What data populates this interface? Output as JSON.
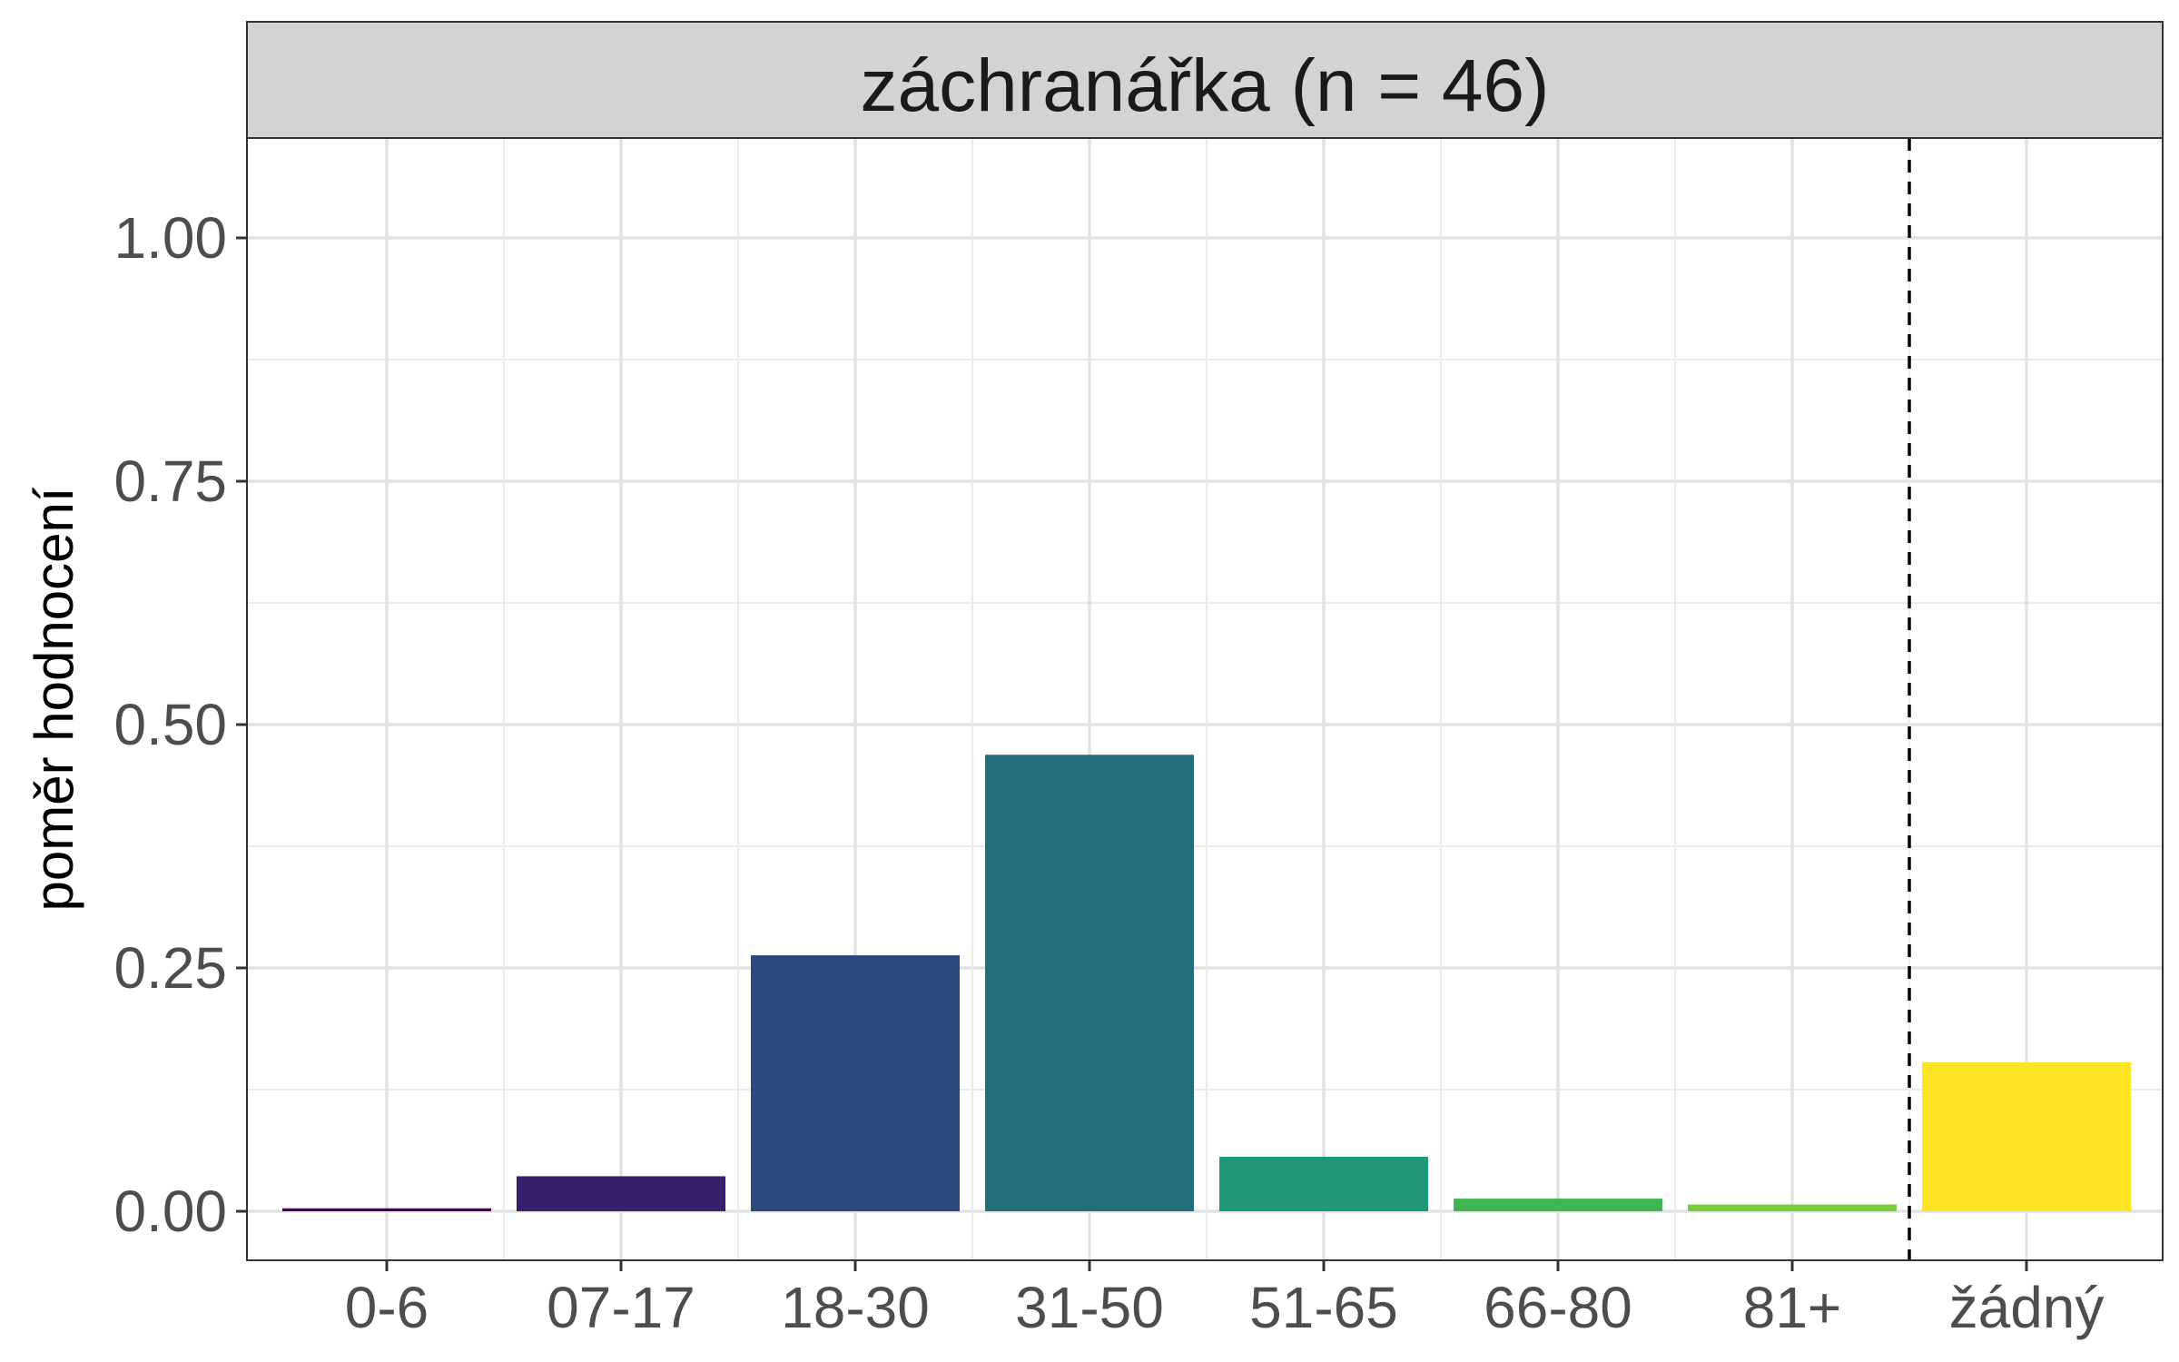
{
  "strip": {
    "title": "záchranářka (n = 46)"
  },
  "chart_data": {
    "type": "bar",
    "categories": [
      "0-6",
      "07-17",
      "18-30",
      "31-50",
      "51-65",
      "66-80",
      "81+",
      "žádný"
    ],
    "values": [
      0.003,
      0.036,
      0.263,
      0.469,
      0.056,
      0.013,
      0.007,
      0.153
    ],
    "colors": [
      "#440154",
      "#3b1f6b",
      "#2b4a7b",
      "#226e7c",
      "#21977a",
      "#3fb653",
      "#7ccd3d",
      "#fde525"
    ],
    "ylabel": "poměr hodnocení",
    "xlabel": "",
    "ylim": [
      -0.05,
      1.1
    ],
    "yticks": [
      0.0,
      0.25,
      0.5,
      0.75,
      1.0
    ],
    "ytick_labels": [
      "0.00",
      "0.25",
      "0.50",
      "0.75",
      "1.00"
    ],
    "separator_after_category": "81+",
    "grid": true
  }
}
